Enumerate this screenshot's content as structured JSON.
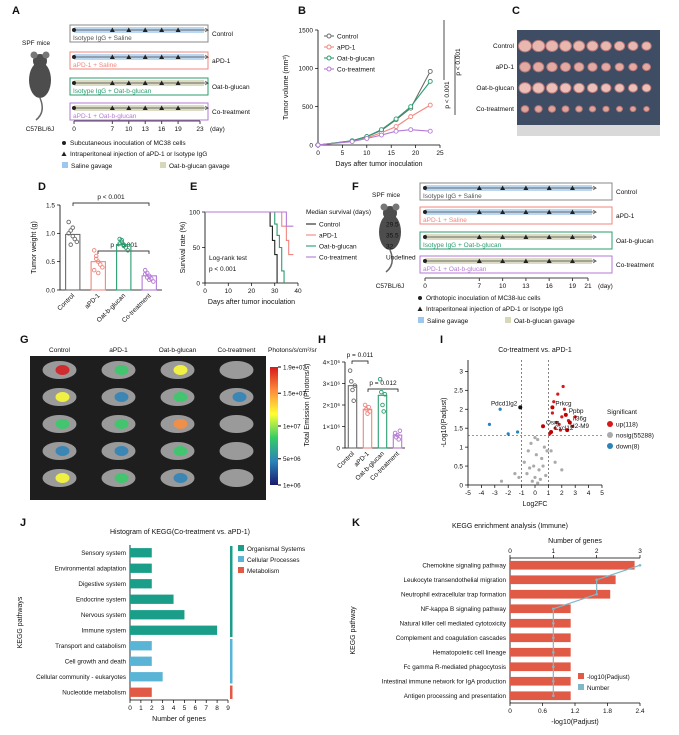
{
  "panel_labels": [
    "A",
    "B",
    "C",
    "D",
    "E",
    "F",
    "G",
    "H",
    "I",
    "J",
    "K"
  ],
  "diagram_a": {
    "mouse": "SPF mice",
    "strain": "C57BL/6J",
    "groups": [
      {
        "treatment": "Isotype IgG + Saline",
        "name": "Control"
      },
      {
        "treatment": "aPD-1 + Saline",
        "name": "aPD-1"
      },
      {
        "treatment": "Isotype IgG + Oat-b-glucan",
        "name": "Oat-b-glucan"
      },
      {
        "treatment": "aPD-1 + Oat-b-glucan",
        "name": "Co-treatment"
      }
    ],
    "days": [
      0,
      7,
      10,
      13,
      16,
      19,
      23
    ],
    "day_unit": "(day)",
    "legend": [
      "Subcutaneous inoculation of MC38 cells",
      "Intraperitoneal injection of aPD-1 or Isotype IgG",
      "Saline gavage",
      "Oat-b-glucan gavage"
    ]
  },
  "diagram_f": {
    "mouse": "SPF mice",
    "strain": "C57BL/6J",
    "groups": [
      {
        "treatment": "Isotype IgG + Saline",
        "name": "Control"
      },
      {
        "treatment": "aPD-1 + Saline",
        "name": "aPD-1"
      },
      {
        "treatment": "Isotype IgG + Oat-b-glucan",
        "name": "Oat-b-glucan"
      },
      {
        "treatment": "aPD-1 + Oat-b-glucan",
        "name": "Co-treatment"
      }
    ],
    "days": [
      0,
      7,
      10,
      13,
      16,
      19,
      21
    ],
    "day_unit": "(day)",
    "legend": [
      "Orthotopic inoculation of MC38-luc cells",
      "Intraperitoneal injection of aPD-1 or Isotype IgG",
      "Saline gavage",
      "Oat-b-glucan gavage"
    ]
  },
  "photo_c": {
    "rows": [
      "Control",
      "aPD-1",
      "Oat-b-glucan",
      "Co-treatment"
    ]
  },
  "imaging_g": {
    "columns": [
      "Control",
      "aPD-1",
      "Oat-b-glucan",
      "Co-treatment"
    ],
    "colorbar_label": "Photons/s/cm²/sr",
    "clim": [
      1000000,
      19000000
    ],
    "colorbar_ticks": [
      {
        "value": 19000000,
        "label": "1.9e+07"
      },
      {
        "value": 15000000,
        "label": "1.5e+07"
      },
      {
        "value": 10000000,
        "label": "1e+07"
      },
      {
        "value": 5000000,
        "label": "5e+06"
      },
      {
        "value": 1000000,
        "label": "1e+06"
      }
    ]
  },
  "chart_data": [
    {
      "type": "line",
      "markers": true,
      "x": [
        0,
        7,
        10,
        13,
        16,
        19,
        23
      ],
      "xlim": [
        0,
        25
      ],
      "xticks": [
        0,
        5,
        10,
        15,
        20,
        25
      ],
      "ylim": [
        0,
        1500
      ],
      "yticks": [
        0,
        500,
        1000,
        1500
      ],
      "x_label": "Days after tumor inoculation",
      "y_label": "Tumor volume (mm³)",
      "annotations": [
        "p < 0.001",
        "p < 0.001"
      ],
      "series": [
        {
          "name": "Control",
          "color": "#6b6b6b",
          "values": [
            0,
            55,
            110,
            190,
            330,
            480,
            960
          ]
        },
        {
          "name": "aPD-1",
          "color": "#f0877f",
          "values": [
            0,
            50,
            95,
            160,
            240,
            370,
            520
          ]
        },
        {
          "name": "Oat-b-glucan",
          "color": "#2a9d6f",
          "values": [
            0,
            55,
            110,
            200,
            340,
            500,
            830
          ]
        },
        {
          "name": "Co-treatment",
          "color": "#b57ad6",
          "values": [
            0,
            45,
            85,
            130,
            180,
            200,
            180
          ]
        }
      ]
    },
    {
      "type": "bar",
      "categories": [
        "Control",
        "aPD-1",
        "Oat-b-glucan",
        "Co-treatment"
      ],
      "values": [
        0.98,
        0.5,
        0.8,
        0.25
      ],
      "colors": [
        "#6b6b6b",
        "#f0877f",
        "#2a9d6f",
        "#b57ad6"
      ],
      "points": [
        [
          1.2,
          1.05,
          0.95,
          0.9,
          0.85,
          1.0,
          0.8,
          1.1
        ],
        [
          0.7,
          0.6,
          0.5,
          0.45,
          0.4,
          0.35,
          0.55,
          0.3
        ],
        [
          0.9,
          0.85,
          0.8,
          0.75,
          0.7,
          0.82,
          0.88,
          0.78
        ],
        [
          0.35,
          0.3,
          0.25,
          0.2,
          0.15,
          0.28,
          0.22,
          0.18
        ]
      ],
      "ylim": [
        0,
        1.5
      ],
      "yticks": [
        {
          "value": 0,
          "label": "0.0"
        },
        0.5,
        {
          "value": 1,
          "label": "1.0"
        },
        1.5
      ],
      "y_label": "Tumor weight (g)",
      "annotations": [
        "p < 0.001",
        "p < 0.001"
      ]
    },
    {
      "type": "line",
      "step": true,
      "xlim": [
        0,
        40
      ],
      "xticks": [
        0,
        10,
        20,
        30,
        40
      ],
      "ylim": [
        0,
        100
      ],
      "yticks": [
        0,
        50,
        100
      ],
      "x_label": "Days after tumor inoculation",
      "y_label": "Survival rate (%)",
      "legend_title": "Median survival (days)",
      "median_values": [
        29.5,
        35.5,
        32,
        "Undefined"
      ],
      "annotations": [
        "Log-rank test",
        "p < 0.001"
      ],
      "series": [
        {
          "name": "Control",
          "color": "#222222",
          "x": [
            0,
            26,
            28,
            29,
            30,
            31
          ],
          "values": [
            100,
            100,
            80,
            60,
            40,
            0
          ]
        },
        {
          "name": "aPD-1",
          "color": "#f0877f",
          "x": [
            0,
            31,
            33,
            35,
            36,
            38
          ],
          "values": [
            100,
            100,
            80,
            60,
            40,
            40
          ]
        },
        {
          "name": "Oat-b-glucan",
          "color": "#2a9d6f",
          "x": [
            0,
            28,
            30,
            31,
            32,
            33,
            34
          ],
          "values": [
            100,
            100,
            83,
            67,
            50,
            17,
            0
          ]
        },
        {
          "name": "Co-treatment",
          "color": "#b57ad6",
          "x": [
            0,
            33,
            35,
            38
          ],
          "values": [
            100,
            100,
            80,
            80
          ]
        }
      ]
    },
    {
      "type": "bar",
      "categories": [
        "Control",
        "aPD-1",
        "Oat-b-glucan",
        "Co-treatment"
      ],
      "values": [
        2900000,
        1800000,
        2450000,
        600000
      ],
      "colors": [
        "#6b6b6b",
        "#f0877f",
        "#2a9d6f",
        "#b57ad6"
      ],
      "points": [
        [
          3600000,
          3100000,
          2700000,
          2200000,
          2900000
        ],
        [
          2000000,
          1800000,
          1600000,
          1900000,
          1700000
        ],
        [
          3200000,
          2600000,
          2000000,
          1700000,
          2500000
        ],
        [
          700000,
          500000,
          600000,
          400000,
          800000
        ]
      ],
      "ylim": [
        0,
        4000000
      ],
      "yticks": [
        0,
        {
          "value": 1000000,
          "label": "1×10⁶"
        },
        {
          "value": 2000000,
          "label": "2×10⁶"
        },
        {
          "value": 3000000,
          "label": "3×10⁶"
        },
        {
          "value": 4000000,
          "label": "4×10⁶"
        }
      ],
      "y_label": "Total Emission (Photons/s)",
      "annotations": [
        "p = 0.011",
        "p = 0.012"
      ]
    },
    {
      "type": "scatter",
      "title": "Co-treatment vs. aPD-1",
      "xlim": [
        -5,
        5
      ],
      "xticks": [
        -5,
        -4,
        -3,
        -2,
        -1,
        0,
        1,
        2,
        3,
        4,
        5
      ],
      "ylim": [
        0,
        3.3
      ],
      "yticks": [
        0,
        0.5,
        1,
        1.5,
        2,
        2.5,
        3
      ],
      "x_label": "Log2FC",
      "y_label": "-Log10(Padjust)",
      "legend_title": "Significant",
      "thresholds": {
        "x": [
          -1,
          1
        ],
        "y": [
          1.3
        ]
      },
      "series": [
        {
          "name": "up(118)",
          "color": "#d7191c",
          "x": [
            1.2,
            1.5,
            1.8,
            2.0,
            2.2,
            2.5,
            1.4,
            1.7,
            1.1,
            1.3,
            1.9,
            2.8,
            3.0,
            1.6,
            2.1
          ],
          "values": [
            1.4,
            1.5,
            1.6,
            1.8,
            2.0,
            1.7,
            2.2,
            2.4,
            1.35,
            1.9,
            1.45,
            1.55,
            1.8,
            1.65,
            2.6
          ]
        },
        {
          "name": "nosig(55288)",
          "color": "#aaaaaa",
          "x": [
            -1.5,
            -0.8,
            -0.5,
            -0.3,
            -0.1,
            0,
            0.1,
            0.2,
            0.3,
            0.5,
            0.7,
            0.9,
            -0.6,
            0.4,
            -0.2,
            0.6,
            0.8,
            -1.2,
            1.5,
            2,
            -2.5,
            0,
            0.2,
            -0.4,
            1.2
          ],
          "values": [
            0.3,
            0.6,
            0.9,
            1.1,
            0.5,
            0.2,
            0.8,
            1.2,
            0.4,
            0.7,
            1.0,
            0.9,
            0.3,
            0.15,
            0.1,
            0.5,
            0.25,
            0.2,
            0.6,
            0.4,
            0.1,
            1.25,
            0.05,
            0.45,
            0.9
          ]
        },
        {
          "name": "down(8)",
          "color": "#2b83ba",
          "x": [
            -1.3,
            -2.6,
            -3.4,
            -2.0
          ],
          "values": [
            1.4,
            2.0,
            1.6,
            1.35
          ]
        }
      ],
      "genes": [
        {
          "name": "Pdcd1lg2",
          "x": -1.1,
          "y": 2.05
        },
        {
          "name": "Prkcg",
          "x": 1.3,
          "y": 2.05
        },
        {
          "name": "Osm",
          "x": 0.6,
          "y": 1.55
        },
        {
          "name": "Ppbp",
          "x": 2.3,
          "y": 1.85
        },
        {
          "name": "Il36g",
          "x": 2.6,
          "y": 1.65
        },
        {
          "name": "H2-M9",
          "x": 2.4,
          "y": 1.45
        },
        {
          "name": "Cxcl12",
          "x": 1.2,
          "y": 1.4
        }
      ]
    },
    {
      "type": "bar",
      "horizontal": true,
      "title": "Histogram of KEGG(Co-treatment vs. aPD-1)",
      "categories": [
        "Sensory system",
        "Environmental adaptation",
        "Digestive system",
        "Endocrine system",
        "Nervous system",
        "Immune system",
        "Transport and catabolism",
        "Cell growth and death",
        "Cellular community - eukaryotes",
        "Nucleotide metabolism"
      ],
      "series": [
        {
          "name": "Organismal Systems",
          "color": "#1a9e8a",
          "values": [
            2,
            2,
            2,
            4,
            5,
            8,
            null,
            null,
            null,
            null
          ]
        },
        {
          "name": "Cellular Processes",
          "color": "#5ab4d6",
          "values": [
            null,
            null,
            null,
            null,
            null,
            null,
            2,
            2,
            3,
            null
          ]
        },
        {
          "name": "Metabolism",
          "color": "#e05a45",
          "values": [
            null,
            null,
            null,
            null,
            null,
            null,
            null,
            null,
            null,
            2
          ]
        }
      ],
      "xlim": [
        0,
        9
      ],
      "xticks": [
        0,
        1,
        2,
        3,
        4,
        5,
        6,
        7,
        8,
        9
      ],
      "x_label": "Number of genes",
      "y_label": "KEGG pathways"
    },
    {
      "type": "bar",
      "horizontal": true,
      "title": "KEGG enrichment analysis (Immune)",
      "categories": [
        "Chemokine signaling pathway",
        "Leukocyte transendothelial migration",
        "Neutrophil extracellular trap formation",
        "NF-kappa B signaling pathway",
        "Natural killer cell mediated cytotoxicity",
        "Complement and coagulation cascades",
        "Hematopoietic cell lineage",
        "Fc gamma R-mediated phagocytosis",
        "Intestinal immune network for IgA production",
        "Antigen processing and presentation"
      ],
      "series": [
        {
          "name": "-log10(Padjust)",
          "color": "#e05a45",
          "values": [
            2.3,
            1.95,
            1.85,
            1.12,
            1.12,
            1.12,
            1.12,
            1.12,
            1.12,
            1.12
          ]
        },
        {
          "name": "Number",
          "color": "#7fb8c8",
          "axis": "x2",
          "values": [
            3,
            2,
            2,
            1,
            1,
            1,
            1,
            1,
            1,
            1
          ]
        }
      ],
      "xlim": [
        0,
        2.4
      ],
      "xticks": [
        0,
        0.6,
        1.2,
        1.8,
        2.4
      ],
      "x2lim": [
        0,
        3
      ],
      "x2ticks": [
        0,
        1,
        2,
        3
      ],
      "x_label": "-log10(Padjust)",
      "x2_label": "Number of genes",
      "y_label": "KEGG pathway"
    }
  ]
}
